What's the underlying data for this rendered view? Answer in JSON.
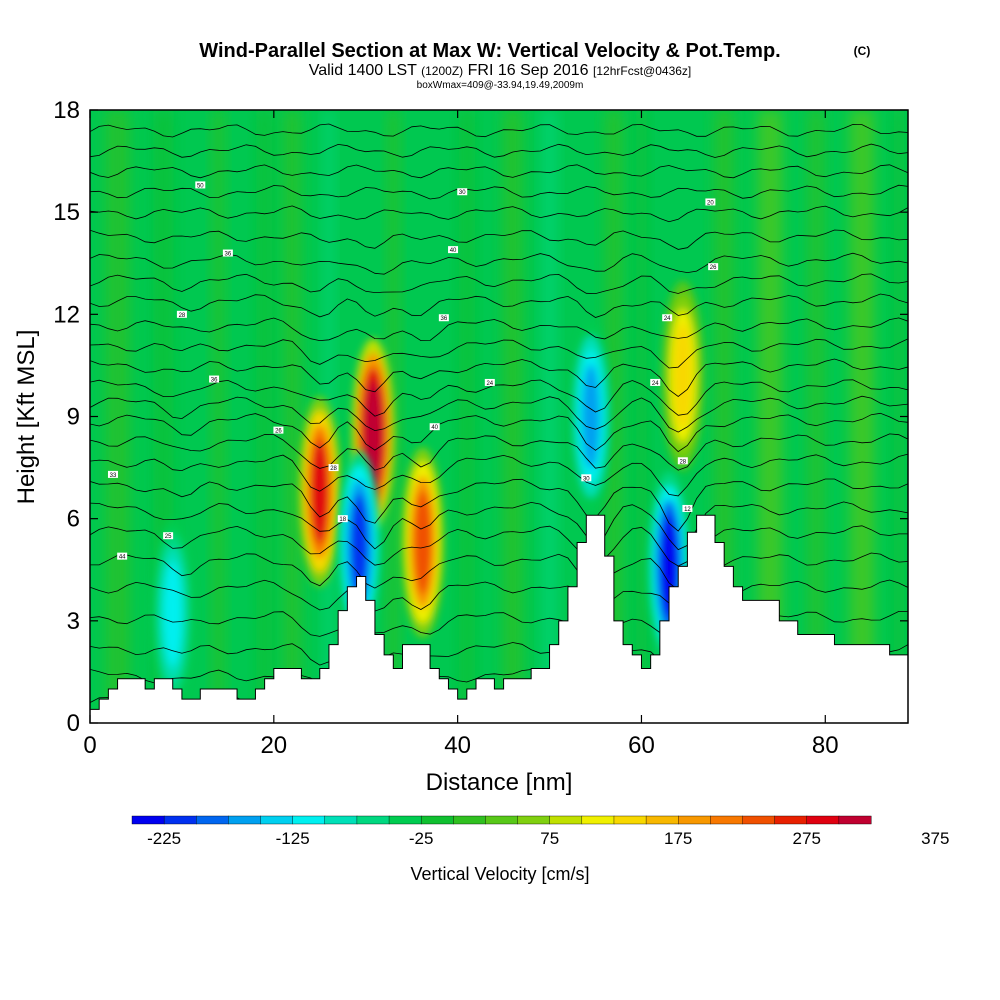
{
  "chart_data": {
    "type": "heatmap",
    "title": "Wind-Parallel Section at Max W: Vertical Velocity & Pot.Temp.",
    "title_tag": "(C)",
    "subtitle_parts": [
      "Valid 1400 LST",
      "(1200Z)",
      "FRI 16 Sep 2016",
      "[12hrFcst@0436z]"
    ],
    "info_line": "boxWmax=409@-33.94,19.49,2009m",
    "xlabel": "Distance [nm]",
    "ylabel": "Height [Kft MSL]",
    "xlim": [
      0,
      89
    ],
    "ylim": [
      0,
      18
    ],
    "x_ticks": [
      0,
      20,
      40,
      60,
      80
    ],
    "y_ticks": [
      0,
      3,
      6,
      9,
      12,
      15,
      18
    ],
    "colorbar": {
      "label": "Vertical Velocity [cm/s]",
      "tick_labels": [
        "-225",
        "-125",
        "-25",
        "75",
        "175",
        "275",
        "375"
      ],
      "colors": [
        "#0000f0",
        "#0030f0",
        "#0066f0",
        "#00a0f0",
        "#00d0f0",
        "#00f0f0",
        "#00e0b8",
        "#00d880",
        "#00cc50",
        "#10c030",
        "#30c020",
        "#58c818",
        "#80d010",
        "#c0e000",
        "#f0f000",
        "#f8d800",
        "#f8b800",
        "#f89800",
        "#f87800",
        "#f05000",
        "#e82000",
        "#e00010",
        "#c00030"
      ]
    },
    "terrain_kft": [
      [
        0,
        0.4
      ],
      [
        1,
        0.7
      ],
      [
        2,
        1.0
      ],
      [
        3,
        1.3
      ],
      [
        5,
        1.3
      ],
      [
        6,
        1.0
      ],
      [
        7,
        1.3
      ],
      [
        8,
        1.3
      ],
      [
        9,
        1.0
      ],
      [
        10,
        0.7
      ],
      [
        11,
        0.7
      ],
      [
        12,
        1.0
      ],
      [
        15,
        1.0
      ],
      [
        16,
        0.7
      ],
      [
        17,
        0.7
      ],
      [
        18,
        1.0
      ],
      [
        19,
        1.3
      ],
      [
        20,
        1.6
      ],
      [
        22,
        1.6
      ],
      [
        23,
        1.3
      ],
      [
        24,
        1.3
      ],
      [
        25,
        1.6
      ],
      [
        26,
        2.3
      ],
      [
        27,
        3.3
      ],
      [
        28,
        4.0
      ],
      [
        29,
        4.3
      ],
      [
        30,
        3.6
      ],
      [
        31,
        2.6
      ],
      [
        32,
        2.0
      ],
      [
        33,
        1.6
      ],
      [
        34,
        2.3
      ],
      [
        36,
        2.3
      ],
      [
        37,
        1.6
      ],
      [
        38,
        1.3
      ],
      [
        39,
        1.0
      ],
      [
        40,
        0.7
      ],
      [
        41,
        1.0
      ],
      [
        42,
        1.3
      ],
      [
        43,
        1.3
      ],
      [
        44,
        1.0
      ],
      [
        45,
        1.3
      ],
      [
        47,
        1.3
      ],
      [
        48,
        1.6
      ],
      [
        50,
        2.3
      ],
      [
        51,
        3.0
      ],
      [
        52,
        4.0
      ],
      [
        53,
        5.3
      ],
      [
        54,
        6.1
      ],
      [
        55,
        6.1
      ],
      [
        56,
        4.9
      ],
      [
        57,
        3.0
      ],
      [
        58,
        2.3
      ],
      [
        59,
        2.0
      ],
      [
        60,
        1.6
      ],
      [
        61,
        2.0
      ],
      [
        62,
        3.0
      ],
      [
        63,
        4.0
      ],
      [
        64,
        4.6
      ],
      [
        65,
        5.6
      ],
      [
        66,
        6.1
      ],
      [
        67,
        6.1
      ],
      [
        68,
        5.3
      ],
      [
        69,
        4.6
      ],
      [
        70,
        4.0
      ],
      [
        71,
        3.6
      ],
      [
        74,
        3.6
      ],
      [
        75,
        3.0
      ],
      [
        77,
        2.6
      ],
      [
        80,
        2.6
      ],
      [
        81,
        2.3
      ],
      [
        86,
        2.3
      ],
      [
        87,
        2.0
      ],
      [
        89,
        2.0
      ]
    ],
    "w_cells": [
      {
        "x": 25,
        "y": 6.8,
        "w_max": 300
      },
      {
        "x": 30.8,
        "y": 8.5,
        "w_max": 390
      },
      {
        "x": 36.2,
        "y": 5.3,
        "w_max": 260
      },
      {
        "x": 64.5,
        "y": 10.2,
        "w_max": 150
      },
      {
        "x": 63,
        "y": 4.6,
        "w_min": -225
      },
      {
        "x": 54.5,
        "y": 9.0,
        "w_min": -140
      },
      {
        "x": 29.3,
        "y": 5.2,
        "w_min": -200
      },
      {
        "x": 9,
        "y": 3.2,
        "w_min": -110
      }
    ],
    "contour_labels": [
      {
        "x": 12,
        "y": 15.8,
        "text": "50"
      },
      {
        "x": 15,
        "y": 13.8,
        "text": "36"
      },
      {
        "x": 10,
        "y": 12.0,
        "text": "28"
      },
      {
        "x": 13.5,
        "y": 10.1,
        "text": "36"
      },
      {
        "x": 20.5,
        "y": 8.6,
        "text": "26"
      },
      {
        "x": 2.5,
        "y": 7.3,
        "text": "33"
      },
      {
        "x": 3.5,
        "y": 4.9,
        "text": "44"
      },
      {
        "x": 8.5,
        "y": 5.5,
        "text": "25"
      },
      {
        "x": 40.5,
        "y": 15.6,
        "text": "30"
      },
      {
        "x": 39.5,
        "y": 13.9,
        "text": "40"
      },
      {
        "x": 38.5,
        "y": 11.9,
        "text": "36"
      },
      {
        "x": 43.5,
        "y": 10.0,
        "text": "24"
      },
      {
        "x": 37.5,
        "y": 8.7,
        "text": "40"
      },
      {
        "x": 26.5,
        "y": 7.5,
        "text": "28"
      },
      {
        "x": 27.5,
        "y": 6.0,
        "text": "18"
      },
      {
        "x": 54,
        "y": 7.2,
        "text": "30"
      },
      {
        "x": 67.5,
        "y": 15.3,
        "text": "20"
      },
      {
        "x": 67.8,
        "y": 13.4,
        "text": "26"
      },
      {
        "x": 62.8,
        "y": 11.9,
        "text": "24"
      },
      {
        "x": 61.5,
        "y": 10.0,
        "text": "24"
      },
      {
        "x": 64.5,
        "y": 7.7,
        "text": "28"
      },
      {
        "x": 65,
        "y": 6.3,
        "text": "12"
      }
    ]
  }
}
